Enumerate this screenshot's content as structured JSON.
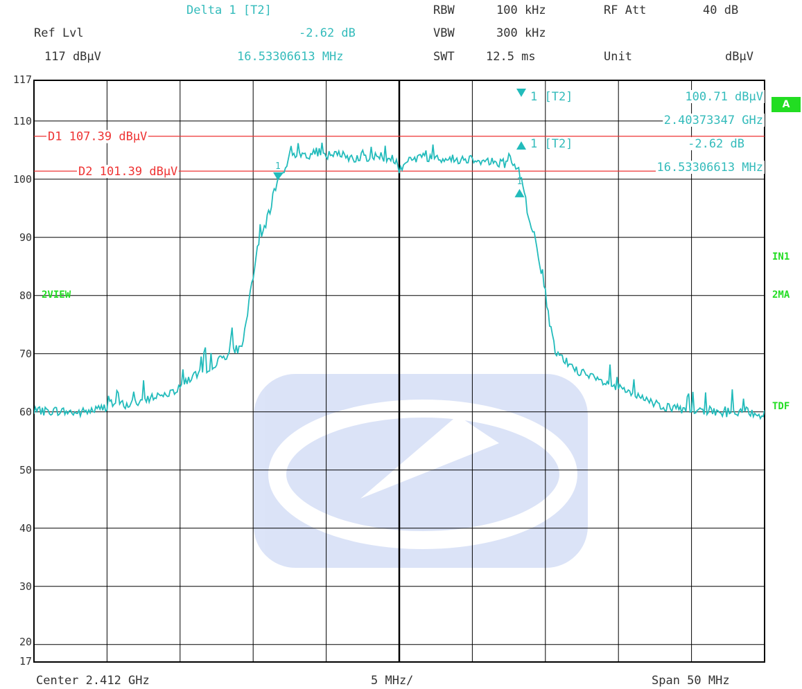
{
  "header": {
    "delta_title": "Delta 1 [T2]",
    "delta_value": "-2.62 dB",
    "delta_freq": "16.53306613 MHz",
    "ref_lvl_label": "Ref Lvl",
    "ref_lvl_value": "117 dBμV",
    "rbw_label": "RBW",
    "rbw_value": "100 kHz",
    "vbw_label": "VBW",
    "vbw_value": "300 kHz",
    "swt_label": "SWT",
    "swt_value": "12.5 ms",
    "rfatt_label": "RF Att",
    "rfatt_value": "40 dB",
    "unit_label": "Unit",
    "unit_value": "dBμV"
  },
  "markers": {
    "m1_label": "1 [T2]",
    "m1_level": "100.71 dBμV",
    "m1_freq": "2.40373347 GHz",
    "m2_label": "1 [T2]",
    "m2_level": "-2.62 dB",
    "m2_freq": "16.53306613 MHz"
  },
  "lines": {
    "d1_label": "D1 107.39 dBμV",
    "d2_label": "D2 101.39 dBμV",
    "d1_level": 107.39,
    "d2_level": 101.39
  },
  "side_labels": {
    "a_badge": "A",
    "in1": "IN1",
    "ma2": "2MA",
    "tdf": "TDF",
    "view": "2VIEW"
  },
  "footer": {
    "center": "Center 2.412 GHz",
    "div": "5 MHz/",
    "span": "Span 50 MHz"
  },
  "colors": {
    "trace": "#22bbbb",
    "display_line": "#ee3333",
    "annotation": "#22dd22",
    "grid": "#000000"
  },
  "chart_data": {
    "type": "line",
    "x_unit": "MHz offset from center",
    "xlim": [
      -25,
      25
    ],
    "ylim": [
      17,
      117
    ],
    "y_ticks": [
      "117",
      "110",
      "100",
      "90",
      "80",
      "70",
      "60",
      "50",
      "40",
      "30",
      "20",
      "17"
    ],
    "y_tick_values": [
      117,
      110,
      100,
      90,
      80,
      70,
      60,
      50,
      40,
      30,
      20,
      17
    ],
    "grid": true,
    "series": [
      {
        "x": [
          -25,
          -23.5,
          -22,
          -20.5,
          -19.5,
          -18.5,
          -17,
          -15.5,
          -14.5,
          -13.5,
          -12.5,
          -11.5,
          -10.8,
          -10.5,
          -10.2,
          -9.8,
          -9.3,
          -8.8,
          -8.4,
          -8.0,
          -7.5,
          -7.0,
          -6.5,
          -6.0,
          -5.5,
          -5.0,
          -4.0,
          -3.0,
          -2.0,
          -1.0,
          -0.2,
          0.0,
          0.5,
          1.0,
          2.0,
          3.0,
          4.0,
          5.0,
          6.0,
          7.0,
          7.5,
          7.9,
          8.2,
          8.5,
          8.8,
          9.2,
          9.6,
          10.0,
          10.3,
          10.7,
          11.0,
          12.0,
          13.0,
          14.0,
          15.0,
          16.0,
          17.0,
          18.0,
          19.0,
          20.0,
          21.0,
          22.0,
          23.0,
          24.0,
          25.0
        ],
        "values": [
          60.0,
          60.2,
          59.8,
          60.5,
          61.5,
          61.2,
          62.5,
          63.5,
          65.5,
          67.0,
          68.5,
          70.5,
          71.0,
          75.0,
          80.0,
          87.0,
          91.0,
          95.0,
          99.5,
          101.0,
          104.0,
          104.5,
          104.2,
          104.3,
          104.8,
          104.0,
          104.2,
          103.7,
          103.9,
          103.8,
          103.3,
          101.8,
          103.2,
          103.7,
          103.8,
          103.6,
          103.4,
          103.6,
          103.1,
          102.8,
          102.4,
          102.2,
          101.2,
          99.0,
          94.0,
          91.0,
          86.0,
          80.5,
          75.0,
          70.0,
          69.5,
          67.5,
          66.0,
          65.0,
          64.0,
          63.0,
          61.8,
          61.0,
          60.5,
          60.0,
          60.3,
          59.8,
          60.1,
          60.0,
          59.5
        ]
      }
    ],
    "marker_1": {
      "x": -8.3,
      "y": 100.71
    },
    "delta_marker": {
      "x": 8.23,
      "y": 98.09
    }
  }
}
